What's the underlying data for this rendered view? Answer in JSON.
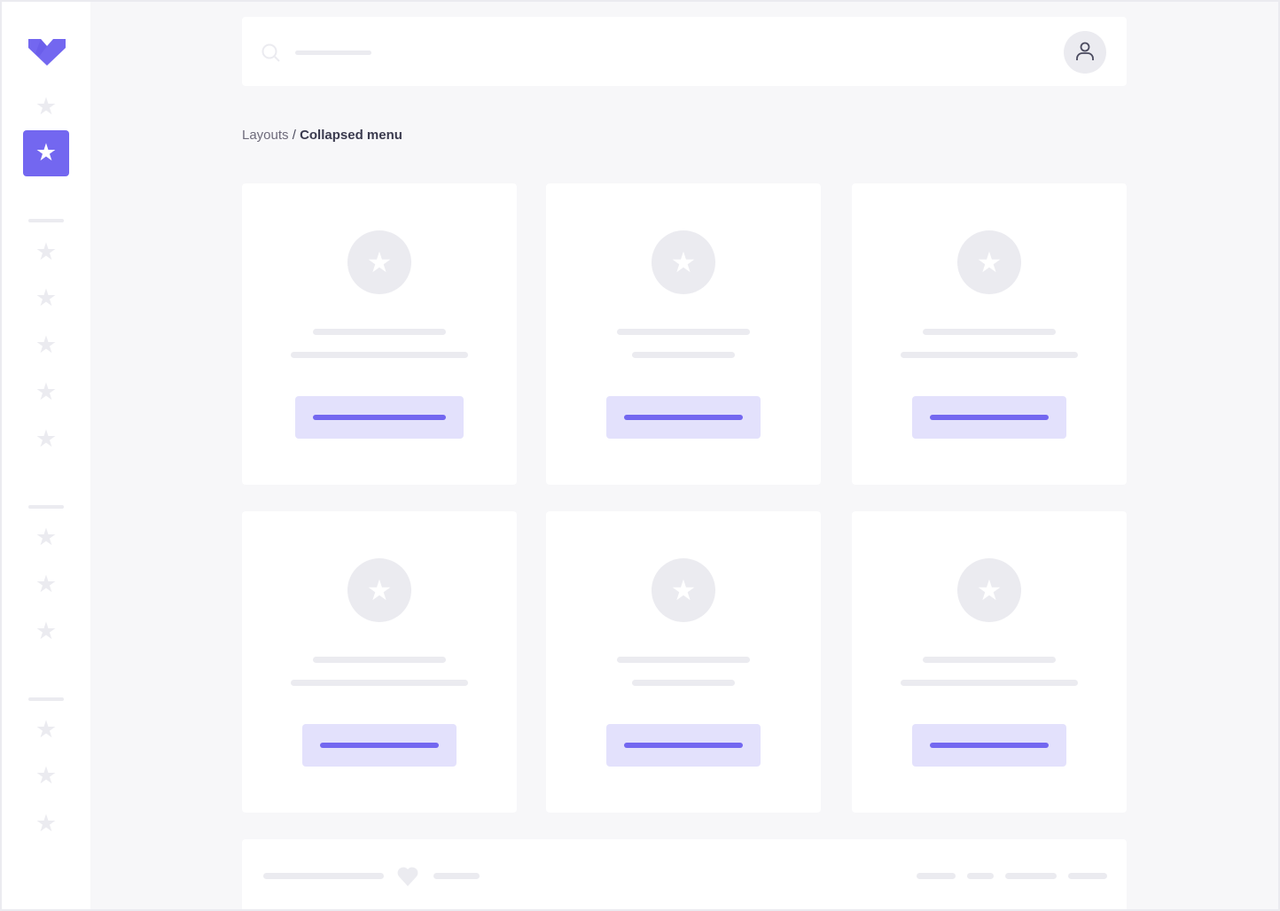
{
  "colors": {
    "accent": "#7367f0",
    "accent_light": "#e3e1fc",
    "placeholder": "#ebebf0",
    "background": "#f7f7f9"
  },
  "sidebar": {
    "logo": "logo-icon",
    "active_icon": "star-icon",
    "item_icon": "star-icon"
  },
  "header": {
    "search_icon": "search-icon",
    "avatar_icon": "user-icon"
  },
  "breadcrumb": {
    "parent": "Layouts",
    "separator": " / ",
    "current": "Collapsed menu"
  },
  "footer": {
    "icon": "heart-icon"
  }
}
